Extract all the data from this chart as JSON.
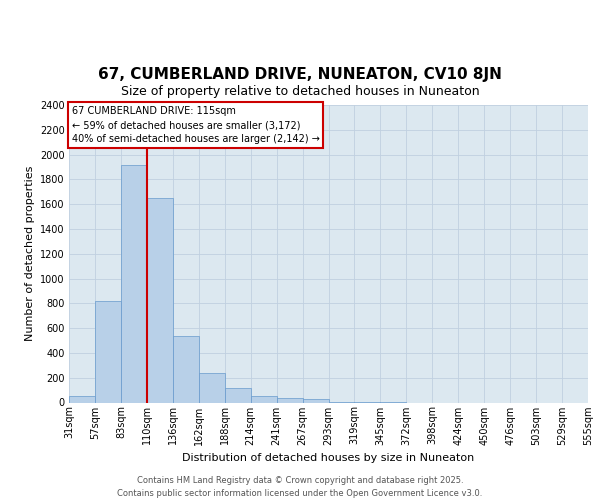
{
  "title": "67, CUMBERLAND DRIVE, NUNEATON, CV10 8JN",
  "subtitle": "Size of property relative to detached houses in Nuneaton",
  "xlabel": "Distribution of detached houses by size in Nuneaton",
  "ylabel": "Number of detached properties",
  "footer_line1": "Contains HM Land Registry data © Crown copyright and database right 2025.",
  "footer_line2": "Contains public sector information licensed under the Open Government Licence v3.0.",
  "bar_values": [
    50,
    820,
    1920,
    1650,
    540,
    235,
    115,
    50,
    40,
    25,
    5,
    2,
    1,
    0,
    0,
    0,
    0,
    0,
    0,
    0
  ],
  "bin_labels": [
    "31sqm",
    "57sqm",
    "83sqm",
    "110sqm",
    "136sqm",
    "162sqm",
    "188sqm",
    "214sqm",
    "241sqm",
    "267sqm",
    "293sqm",
    "319sqm",
    "345sqm",
    "372sqm",
    "398sqm",
    "424sqm",
    "450sqm",
    "476sqm",
    "503sqm",
    "529sqm",
    "555sqm"
  ],
  "bar_color": "#b8d0e8",
  "bar_edge_color": "#6699cc",
  "grid_color": "#c0d0e0",
  "background_color": "#dce8f0",
  "vline_color": "#cc0000",
  "vline_x": 3.0,
  "annotation_text": "67 CUMBERLAND DRIVE: 115sqm\n← 59% of detached houses are smaller (3,172)\n40% of semi-detached houses are larger (2,142) →",
  "annotation_box_color": "#cc0000",
  "ylim": [
    0,
    2400
  ],
  "yticks": [
    0,
    200,
    400,
    600,
    800,
    1000,
    1200,
    1400,
    1600,
    1800,
    2000,
    2200,
    2400
  ],
  "title_fontsize": 11,
  "subtitle_fontsize": 9,
  "xlabel_fontsize": 8,
  "ylabel_fontsize": 8,
  "tick_fontsize": 7,
  "annotation_fontsize": 7,
  "footer_fontsize": 6
}
